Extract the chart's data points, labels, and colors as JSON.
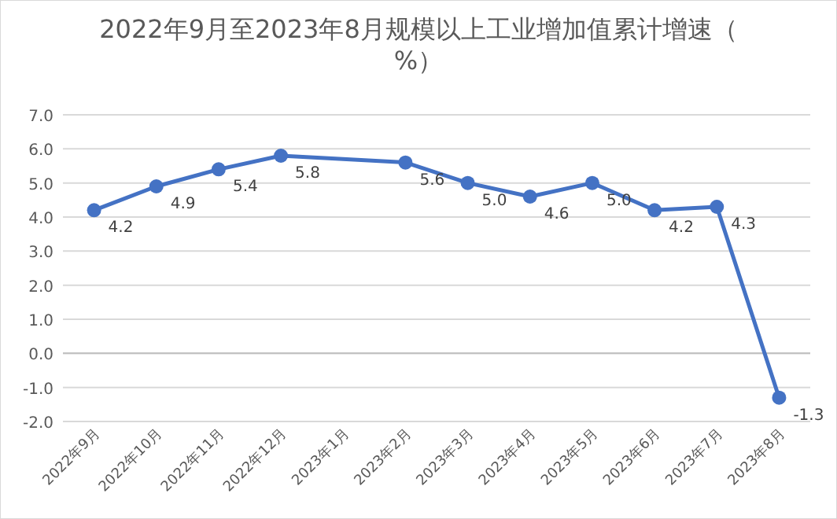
{
  "chart_data": {
    "type": "line",
    "title": "2022年9月至2023年8月规模以上工业增加值累计增速（%）",
    "categories": [
      "2022年9月",
      "2022年10月",
      "2022年11月",
      "2022年12月",
      "2023年1月",
      "2023年2月",
      "2023年3月",
      "2023年4月",
      "2023年5月",
      "2023年6月",
      "2023年7月",
      "2023年8月"
    ],
    "series": [
      {
        "color": "#4472c4",
        "values": [
          4.2,
          4.9,
          5.4,
          5.8,
          null,
          5.6,
          5.0,
          4.6,
          5.0,
          4.2,
          4.3,
          -1.3
        ],
        "value_labels": [
          "4.2",
          "4.9",
          "5.4",
          "5.8",
          null,
          "5.6",
          "5.0",
          "4.6",
          "5.0",
          "4.2",
          "4.3",
          "-1.3"
        ]
      }
    ],
    "ylim": [
      -2,
      7
    ],
    "yticks": [
      {
        "value": -2,
        "label": "-2.0"
      },
      {
        "value": -1,
        "label": "-1.0"
      },
      {
        "value": 0,
        "label": "0.0"
      },
      {
        "value": 1,
        "label": "1.0"
      },
      {
        "value": 2,
        "label": "2.0"
      },
      {
        "value": 3,
        "label": "3.0"
      },
      {
        "value": 4,
        "label": "4.0"
      },
      {
        "value": 5,
        "label": "5.0"
      },
      {
        "value": 6,
        "label": "6.0"
      },
      {
        "value": 7,
        "label": "7.0"
      }
    ],
    "grid": "y",
    "marker": "circle",
    "line_style": "solid"
  }
}
